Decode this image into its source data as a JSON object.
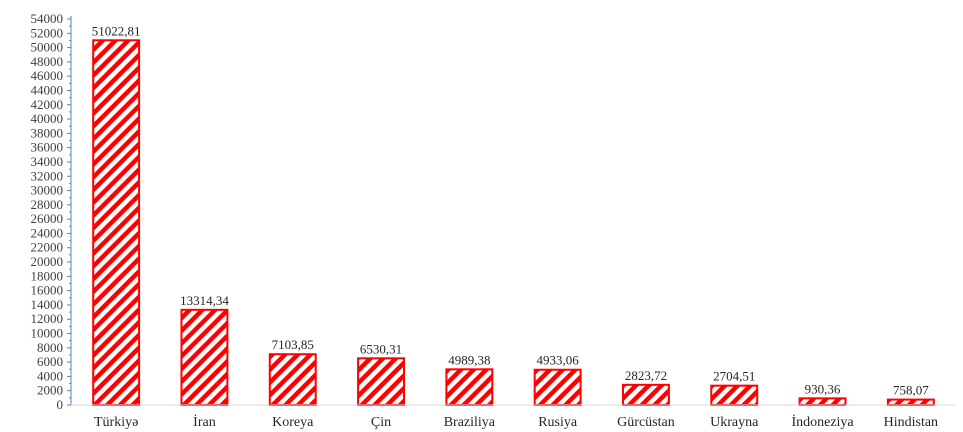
{
  "chart_data": {
    "type": "bar",
    "categories": [
      "Türkiyə",
      "İran",
      "Koreya",
      "Çin",
      "Braziliya",
      "Rusiya",
      "Gürcüstan",
      "Ukrayna",
      "İndoneziya",
      "Hindistan"
    ],
    "values": [
      51022.81,
      13314.34,
      7103.85,
      6530.31,
      4989.38,
      4933.06,
      2823.72,
      2704.51,
      930.36,
      758.07
    ],
    "value_labels": [
      "51022,81",
      "13314,34",
      "7103,85",
      "6530,31",
      "4989,38",
      "4933,06",
      "2823,72",
      "2704,51",
      "930,36",
      "758,07"
    ],
    "yticks": [
      "0",
      "2000",
      "4000",
      "6000",
      "8000",
      "10000",
      "12000",
      "14000",
      "16000",
      "18000",
      "20000",
      "22000",
      "24000",
      "26000",
      "28000",
      "30000",
      "32000",
      "34000",
      "36000",
      "38000",
      "40000",
      "42000",
      "44000",
      "46000",
      "48000",
      "50000",
      "52000",
      "54000"
    ],
    "title": "",
    "xlabel": "",
    "ylabel": "",
    "ylim": [
      0,
      54000
    ],
    "bar_color": "#ff0000",
    "hatch": "diagonal",
    "grid": false,
    "legend": "none"
  }
}
